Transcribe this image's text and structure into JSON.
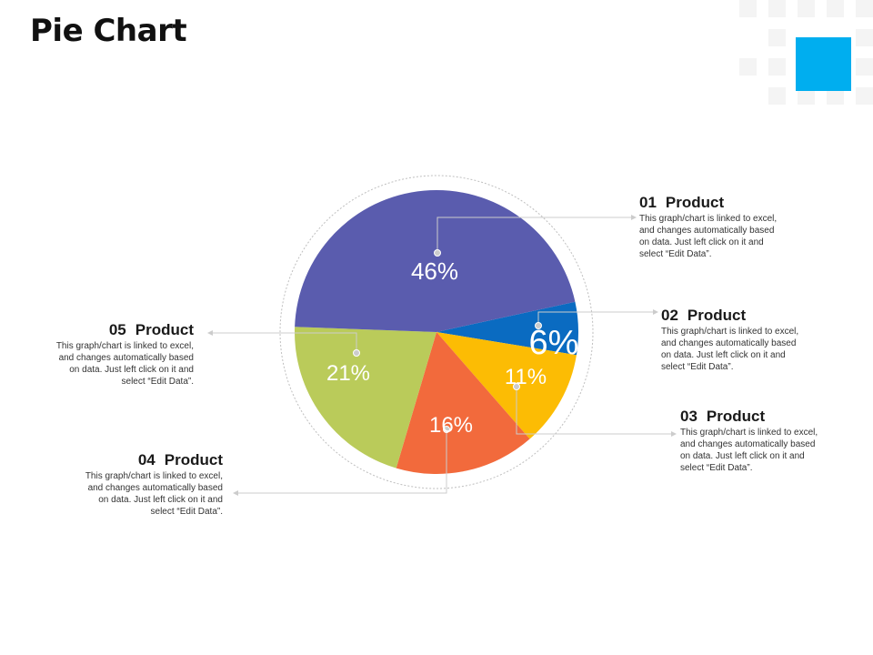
{
  "page": {
    "title": "Pie Chart"
  },
  "colors": {
    "accent_square": "#00AEEF",
    "deco_squares": "#F4F4F4",
    "slice_01": "#5A5CAE",
    "slice_02": "#0A6BC1",
    "slice_03": "#FCBC04",
    "slice_04": "#F26A3C",
    "slice_05": "#BACB5A",
    "leader_line": "#CCCCCC",
    "dot": "#CCCCCC"
  },
  "chart_data": {
    "type": "pie",
    "categories": [
      "01 Product",
      "02 Product",
      "03 Product",
      "04 Product",
      "05 Product"
    ],
    "values": [
      46,
      6,
      11,
      16,
      21
    ],
    "labels": [
      "46%",
      "6%",
      "11%",
      "16%",
      "21%"
    ],
    "title": "Pie Chart",
    "legend": "callouts"
  },
  "callouts": [
    {
      "num": "01",
      "name": "Product",
      "text": [
        "This graph/chart is linked to excel,",
        "and changes automatically based",
        "on data. Just left click on it and",
        "select “Edit Data”."
      ]
    },
    {
      "num": "02",
      "name": "Product",
      "text": [
        "This graph/chart is linked to excel,",
        "and changes automatically based",
        "on data. Just left click on it and",
        "select “Edit Data”."
      ]
    },
    {
      "num": "03",
      "name": "Product",
      "text": [
        "This graph/chart is linked to excel,",
        "and changes automatically based",
        "on data. Just left click on it and",
        "select “Edit Data”."
      ]
    },
    {
      "num": "04",
      "name": "Product",
      "text": [
        "This graph/chart is linked to excel,",
        "and changes automatically based",
        "on data. Just left click on it and",
        "select “Edit Data”."
      ]
    },
    {
      "num": "05",
      "name": "Product",
      "text": [
        "This graph/chart is linked to excel,",
        "and changes automatically based",
        "on data. Just left click on it and",
        "select “Edit Data”."
      ]
    }
  ]
}
